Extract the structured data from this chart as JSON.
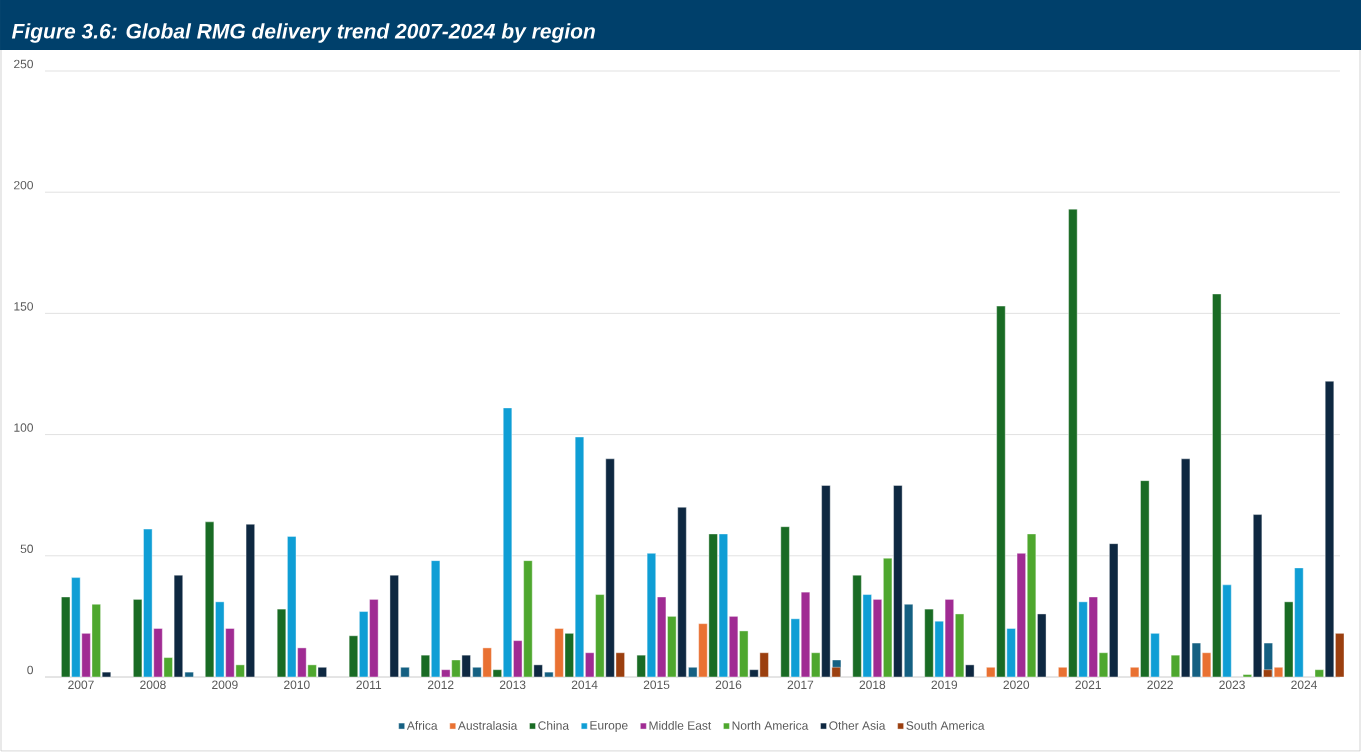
{
  "chart_data": {
    "type": "bar",
    "title": "Figure 3.6: Global RMG delivery trend 2007-2024 by region",
    "categories": [
      "2007",
      "2008",
      "2009",
      "2010",
      "2011",
      "2012",
      "2013",
      "2014",
      "2015",
      "2016",
      "2017",
      "2018",
      "2019",
      "2020",
      "2021",
      "2022",
      "2023",
      "2024"
    ],
    "series": [
      {
        "name": "Africa",
        "color": "#156082",
        "values": [
          null,
          null,
          2,
          null,
          null,
          4,
          4,
          2,
          null,
          4,
          null,
          7,
          30,
          null,
          null,
          null,
          14,
          14
        ]
      },
      {
        "name": "Australasia",
        "color": "#e97132",
        "values": [
          null,
          null,
          null,
          null,
          null,
          null,
          12,
          20,
          null,
          22,
          null,
          null,
          null,
          4,
          4,
          4,
          10,
          4
        ]
      },
      {
        "name": "China",
        "color": "#196b24",
        "values": [
          33,
          32,
          64,
          28,
          17,
          9,
          3,
          18,
          9,
          59,
          62,
          42,
          28,
          153,
          193,
          81,
          158,
          31
        ]
      },
      {
        "name": "Europe",
        "color": "#0f9ed5",
        "values": [
          41,
          61,
          31,
          58,
          27,
          48,
          111,
          99,
          51,
          59,
          24,
          34,
          23,
          20,
          31,
          18,
          38,
          45
        ]
      },
      {
        "name": "Middle East",
        "color": "#a02b93",
        "values": [
          18,
          20,
          20,
          12,
          32,
          3,
          15,
          10,
          33,
          25,
          35,
          32,
          32,
          51,
          33,
          null,
          null,
          null
        ]
      },
      {
        "name": "North America",
        "color": "#4ea72e",
        "values": [
          30,
          8,
          5,
          5,
          null,
          7,
          48,
          34,
          25,
          19,
          10,
          49,
          26,
          59,
          10,
          9,
          1,
          3
        ]
      },
      {
        "name": "Other Asia",
        "color": "#0e2841",
        "values": [
          2,
          42,
          63,
          4,
          42,
          9,
          5,
          90,
          70,
          3,
          79,
          79,
          5,
          26,
          55,
          90,
          67,
          122
        ]
      },
      {
        "name": "South America",
        "color": "#9b3f0f",
        "values": [
          null,
          null,
          null,
          null,
          null,
          null,
          null,
          10,
          null,
          10,
          4,
          null,
          null,
          null,
          null,
          null,
          3,
          18
        ]
      }
    ],
    "ylim": [
      0,
      250
    ],
    "yticks": [
      0,
      50,
      100,
      150,
      200,
      250
    ],
    "grid": "y",
    "legend": "bottom"
  }
}
